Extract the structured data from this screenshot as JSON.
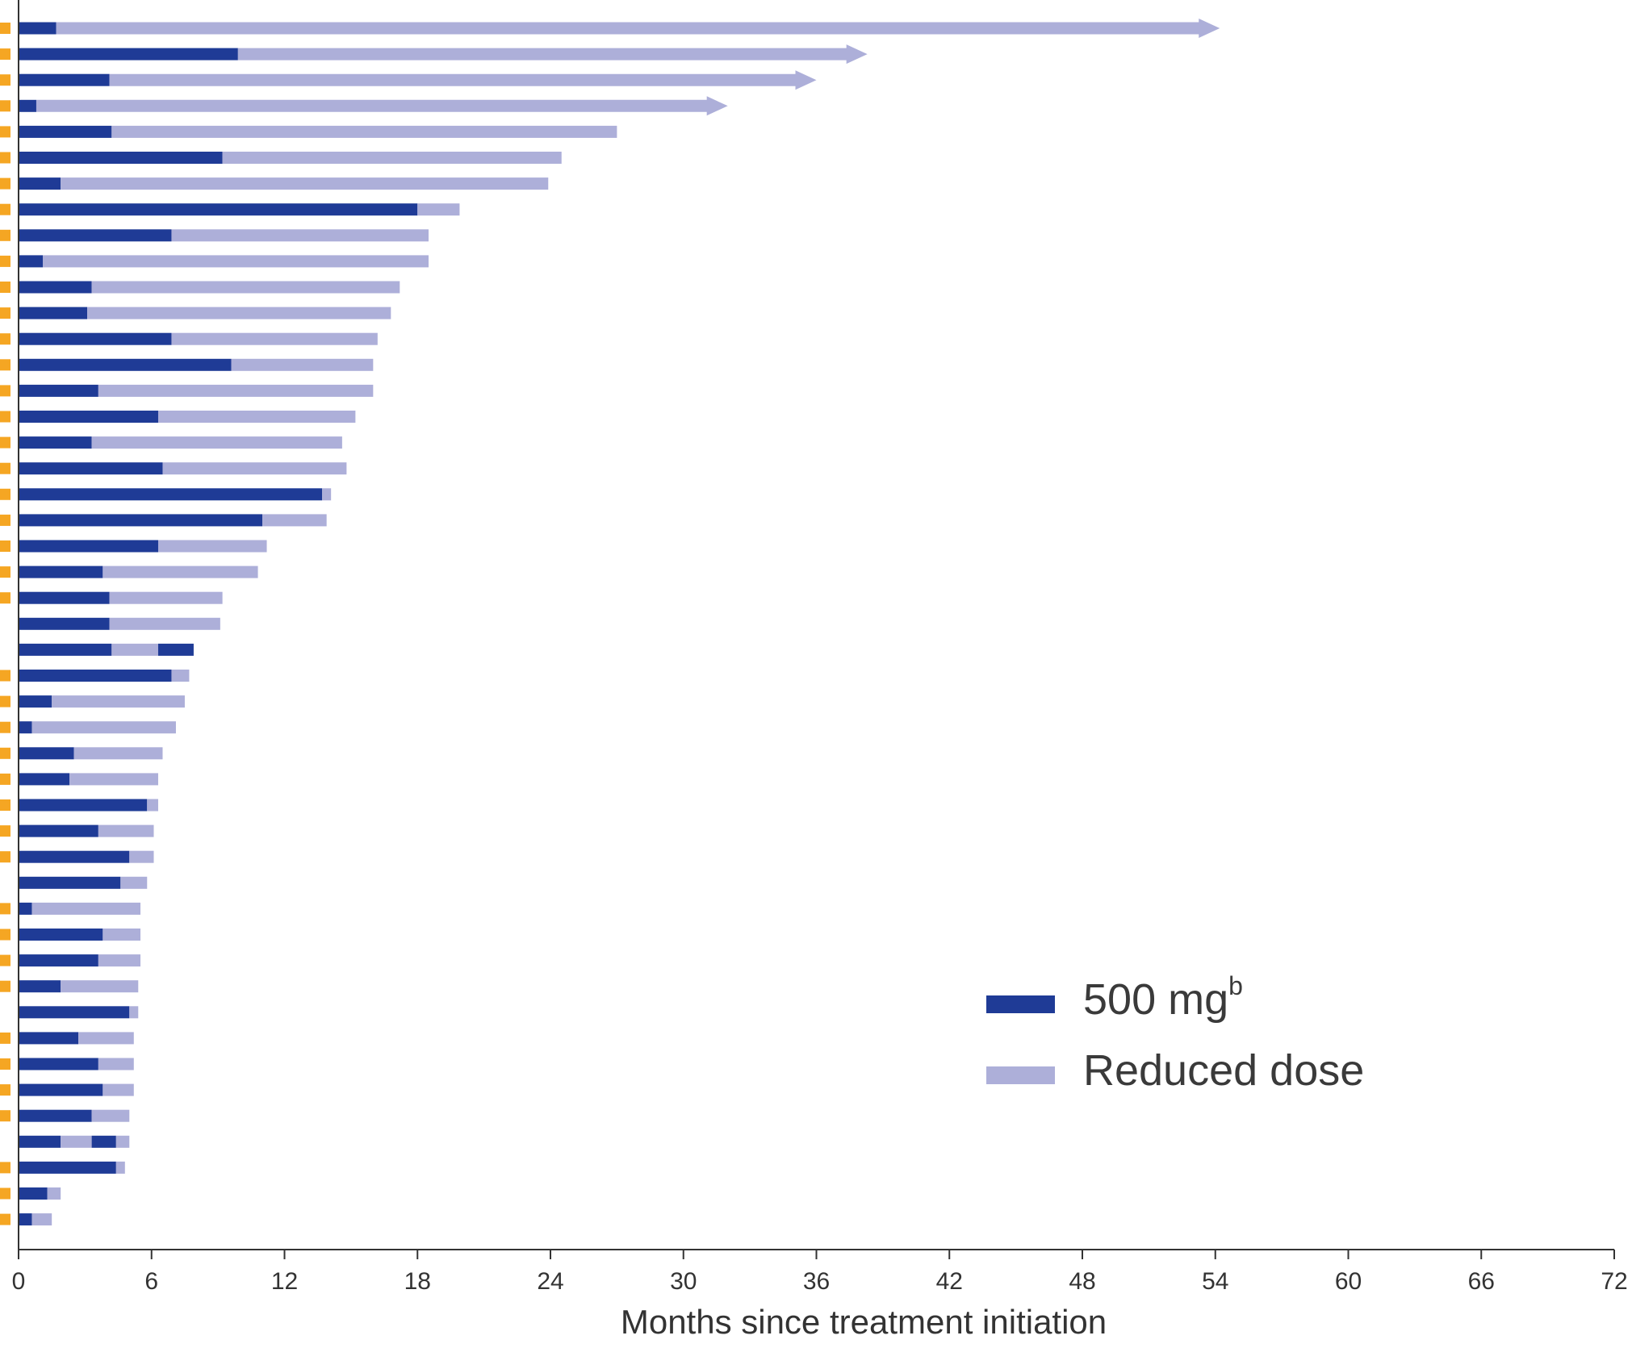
{
  "chart_data": {
    "type": "bar",
    "orientation": "horizontal",
    "stacked": true,
    "title": "",
    "xlabel": "Months since treatment initiation",
    "ylabel": "",
    "xlim": [
      0,
      72
    ],
    "xticks": [
      "0",
      "6",
      "12",
      "18",
      "24",
      "30",
      "36",
      "42",
      "48",
      "54",
      "60",
      "66",
      "72"
    ],
    "grid": false,
    "legend_position": "bottom-right",
    "legend": [
      {
        "name": "500 mg",
        "sup": "b",
        "color": "#1f3b96"
      },
      {
        "name": "Reduced dose",
        "color": "#adafd9"
      }
    ],
    "marker_color": "#f5a623",
    "patients": [
      {
        "segments": [
          [
            "500 mg",
            0,
            1.7
          ],
          [
            "Reduced dose",
            1.7,
            54.2
          ]
        ],
        "ongoing": true,
        "marker": true
      },
      {
        "segments": [
          [
            "500 mg",
            0,
            9.9
          ],
          [
            "Reduced dose",
            9.9,
            38.3
          ]
        ],
        "ongoing": true,
        "marker": true
      },
      {
        "segments": [
          [
            "500 mg",
            0,
            4.1
          ],
          [
            "Reduced dose",
            4.1,
            36.0
          ]
        ],
        "ongoing": true,
        "marker": true
      },
      {
        "segments": [
          [
            "500 mg",
            0,
            0.8
          ],
          [
            "Reduced dose",
            0.8,
            32.0
          ]
        ],
        "ongoing": true,
        "marker": true
      },
      {
        "segments": [
          [
            "500 mg",
            0,
            4.2
          ],
          [
            "Reduced dose",
            4.2,
            27.0
          ]
        ],
        "ongoing": false,
        "marker": true
      },
      {
        "segments": [
          [
            "500 mg",
            0,
            9.2
          ],
          [
            "Reduced dose",
            9.2,
            24.5
          ]
        ],
        "ongoing": false,
        "marker": true
      },
      {
        "segments": [
          [
            "500 mg",
            0,
            1.9
          ],
          [
            "Reduced dose",
            1.9,
            23.9
          ]
        ],
        "ongoing": false,
        "marker": true
      },
      {
        "segments": [
          [
            "500 mg",
            0,
            18.0
          ],
          [
            "Reduced dose",
            18.0,
            19.9
          ]
        ],
        "ongoing": false,
        "marker": true
      },
      {
        "segments": [
          [
            "500 mg",
            0,
            6.9
          ],
          [
            "Reduced dose",
            6.9,
            18.5
          ]
        ],
        "ongoing": false,
        "marker": true
      },
      {
        "segments": [
          [
            "500 mg",
            0,
            1.1
          ],
          [
            "Reduced dose",
            1.1,
            18.5
          ]
        ],
        "ongoing": false,
        "marker": true
      },
      {
        "segments": [
          [
            "500 mg",
            0,
            3.3
          ],
          [
            "Reduced dose",
            3.3,
            17.2
          ]
        ],
        "ongoing": false,
        "marker": true
      },
      {
        "segments": [
          [
            "500 mg",
            0,
            3.1
          ],
          [
            "Reduced dose",
            3.1,
            16.8
          ]
        ],
        "ongoing": false,
        "marker": true
      },
      {
        "segments": [
          [
            "500 mg",
            0,
            6.9
          ],
          [
            "Reduced dose",
            6.9,
            16.2
          ]
        ],
        "ongoing": false,
        "marker": true
      },
      {
        "segments": [
          [
            "500 mg",
            0,
            9.6
          ],
          [
            "Reduced dose",
            9.6,
            16.0
          ]
        ],
        "ongoing": false,
        "marker": true
      },
      {
        "segments": [
          [
            "500 mg",
            0,
            3.6
          ],
          [
            "Reduced dose",
            3.6,
            16.0
          ]
        ],
        "ongoing": false,
        "marker": true
      },
      {
        "segments": [
          [
            "500 mg",
            0,
            6.3
          ],
          [
            "Reduced dose",
            6.3,
            15.2
          ]
        ],
        "ongoing": false,
        "marker": true
      },
      {
        "segments": [
          [
            "500 mg",
            0,
            3.3
          ],
          [
            "Reduced dose",
            3.3,
            14.6
          ]
        ],
        "ongoing": false,
        "marker": true
      },
      {
        "segments": [
          [
            "500 mg",
            0,
            6.5
          ],
          [
            "Reduced dose",
            6.5,
            14.8
          ]
        ],
        "ongoing": false,
        "marker": true
      },
      {
        "segments": [
          [
            "500 mg",
            0,
            13.7
          ],
          [
            "Reduced dose",
            13.7,
            14.1
          ]
        ],
        "ongoing": false,
        "marker": true
      },
      {
        "segments": [
          [
            "500 mg",
            0,
            11.0
          ],
          [
            "Reduced dose",
            11.0,
            13.9
          ]
        ],
        "ongoing": false,
        "marker": true
      },
      {
        "segments": [
          [
            "500 mg",
            0,
            6.3
          ],
          [
            "Reduced dose",
            6.3,
            11.2
          ]
        ],
        "ongoing": false,
        "marker": true
      },
      {
        "segments": [
          [
            "500 mg",
            0,
            3.8
          ],
          [
            "Reduced dose",
            3.8,
            10.8
          ]
        ],
        "ongoing": false,
        "marker": true
      },
      {
        "segments": [
          [
            "500 mg",
            0,
            4.1
          ],
          [
            "Reduced dose",
            4.1,
            9.2
          ]
        ],
        "ongoing": false,
        "marker": true
      },
      {
        "segments": [
          [
            "500 mg",
            0,
            4.1
          ],
          [
            "Reduced dose",
            4.1,
            9.1
          ]
        ],
        "ongoing": false,
        "marker": false
      },
      {
        "segments": [
          [
            "500 mg",
            0,
            4.2
          ],
          [
            "Reduced dose",
            4.2,
            6.3
          ],
          [
            "500 mg",
            6.3,
            7.9
          ]
        ],
        "ongoing": false,
        "marker": false
      },
      {
        "segments": [
          [
            "500 mg",
            0,
            6.9
          ],
          [
            "Reduced dose",
            6.9,
            7.7
          ]
        ],
        "ongoing": false,
        "marker": true
      },
      {
        "segments": [
          [
            "500 mg",
            0,
            1.5
          ],
          [
            "Reduced dose",
            1.5,
            7.5
          ]
        ],
        "ongoing": false,
        "marker": true
      },
      {
        "segments": [
          [
            "500 mg",
            0,
            0.6
          ],
          [
            "Reduced dose",
            0.6,
            7.1
          ]
        ],
        "ongoing": false,
        "marker": true
      },
      {
        "segments": [
          [
            "500 mg",
            0,
            2.5
          ],
          [
            "Reduced dose",
            2.5,
            6.5
          ]
        ],
        "ongoing": false,
        "marker": true
      },
      {
        "segments": [
          [
            "500 mg",
            0,
            2.3
          ],
          [
            "Reduced dose",
            2.3,
            6.3
          ]
        ],
        "ongoing": false,
        "marker": true
      },
      {
        "segments": [
          [
            "500 mg",
            0,
            5.8
          ],
          [
            "Reduced dose",
            5.8,
            6.3
          ]
        ],
        "ongoing": false,
        "marker": true
      },
      {
        "segments": [
          [
            "500 mg",
            0,
            3.6
          ],
          [
            "Reduced dose",
            3.6,
            6.1
          ]
        ],
        "ongoing": false,
        "marker": true
      },
      {
        "segments": [
          [
            "500 mg",
            0,
            5.0
          ],
          [
            "Reduced dose",
            5.0,
            6.1
          ]
        ],
        "ongoing": false,
        "marker": true
      },
      {
        "segments": [
          [
            "500 mg",
            0,
            4.6
          ],
          [
            "Reduced dose",
            4.6,
            5.8
          ]
        ],
        "ongoing": false,
        "marker": false
      },
      {
        "segments": [
          [
            "500 mg",
            0,
            0.6
          ],
          [
            "Reduced dose",
            0.6,
            5.5
          ]
        ],
        "ongoing": false,
        "marker": true
      },
      {
        "segments": [
          [
            "500 mg",
            0,
            3.8
          ],
          [
            "Reduced dose",
            3.8,
            5.5
          ]
        ],
        "ongoing": false,
        "marker": true
      },
      {
        "segments": [
          [
            "500 mg",
            0,
            3.6
          ],
          [
            "Reduced dose",
            3.6,
            5.5
          ]
        ],
        "ongoing": false,
        "marker": true
      },
      {
        "segments": [
          [
            "500 mg",
            0,
            1.9
          ],
          [
            "Reduced dose",
            1.9,
            5.4
          ]
        ],
        "ongoing": false,
        "marker": true
      },
      {
        "segments": [
          [
            "500 mg",
            0,
            5.0
          ],
          [
            "Reduced dose",
            5.0,
            5.4
          ]
        ],
        "ongoing": false,
        "marker": false
      },
      {
        "segments": [
          [
            "500 mg",
            0,
            2.7
          ],
          [
            "Reduced dose",
            2.7,
            5.2
          ]
        ],
        "ongoing": false,
        "marker": true
      },
      {
        "segments": [
          [
            "500 mg",
            0,
            3.6
          ],
          [
            "Reduced dose",
            3.6,
            5.2
          ]
        ],
        "ongoing": false,
        "marker": true
      },
      {
        "segments": [
          [
            "500 mg",
            0,
            3.8
          ],
          [
            "Reduced dose",
            3.8,
            5.2
          ]
        ],
        "ongoing": false,
        "marker": true
      },
      {
        "segments": [
          [
            "500 mg",
            0,
            3.3
          ],
          [
            "Reduced dose",
            3.3,
            5.0
          ]
        ],
        "ongoing": false,
        "marker": true
      },
      {
        "segments": [
          [
            "500 mg",
            0,
            1.9
          ],
          [
            "Reduced dose",
            1.9,
            3.3
          ],
          [
            "500 mg",
            3.3,
            4.4
          ],
          [
            "Reduced dose",
            4.4,
            5.0
          ]
        ],
        "ongoing": false,
        "marker": false
      },
      {
        "segments": [
          [
            "500 mg",
            0,
            4.4
          ],
          [
            "Reduced dose",
            4.4,
            4.8
          ]
        ],
        "ongoing": false,
        "marker": true
      },
      {
        "segments": [
          [
            "500 mg",
            0,
            1.3
          ],
          [
            "Reduced dose",
            1.3,
            1.9
          ]
        ],
        "ongoing": false,
        "marker": true
      },
      {
        "segments": [
          [
            "500 mg",
            0,
            0.6
          ],
          [
            "Reduced dose",
            0.6,
            1.5
          ]
        ],
        "ongoing": false,
        "marker": true
      }
    ]
  }
}
